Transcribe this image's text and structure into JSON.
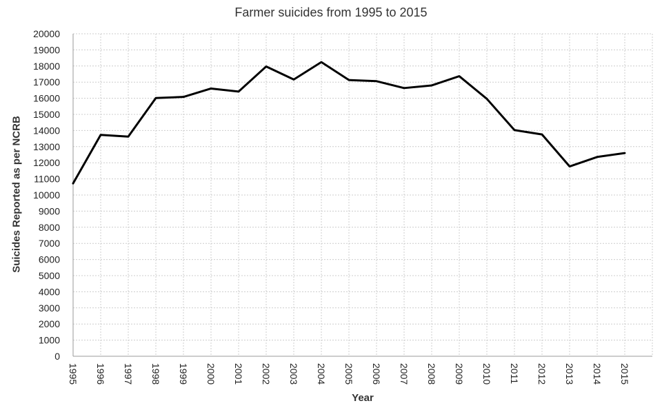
{
  "chart_data": {
    "type": "line",
    "title": "Farmer suicides from 1995 to 2015",
    "xlabel": "Year",
    "ylabel": "Suicides Reported as per NCRB",
    "x": [
      "1995",
      "1996",
      "1997",
      "1998",
      "1999",
      "2000",
      "2001",
      "2002",
      "2003",
      "2004",
      "2005",
      "2006",
      "2007",
      "2008",
      "2009",
      "2010",
      "2011",
      "2012",
      "2013",
      "2014",
      "2015"
    ],
    "series": [
      {
        "values": [
          10720,
          13729,
          13622,
          16015,
          16082,
          16603,
          16415,
          17971,
          17164,
          18241,
          17131,
          17060,
          16632,
          16796,
          17368,
          15964,
          14027,
          13754,
          11772,
          12360,
          12602
        ]
      }
    ],
    "ylim": [
      0,
      20000
    ],
    "ytick_step": 1000,
    "grid": true,
    "line_color": "#000000",
    "grid_color": "#cccccc"
  }
}
